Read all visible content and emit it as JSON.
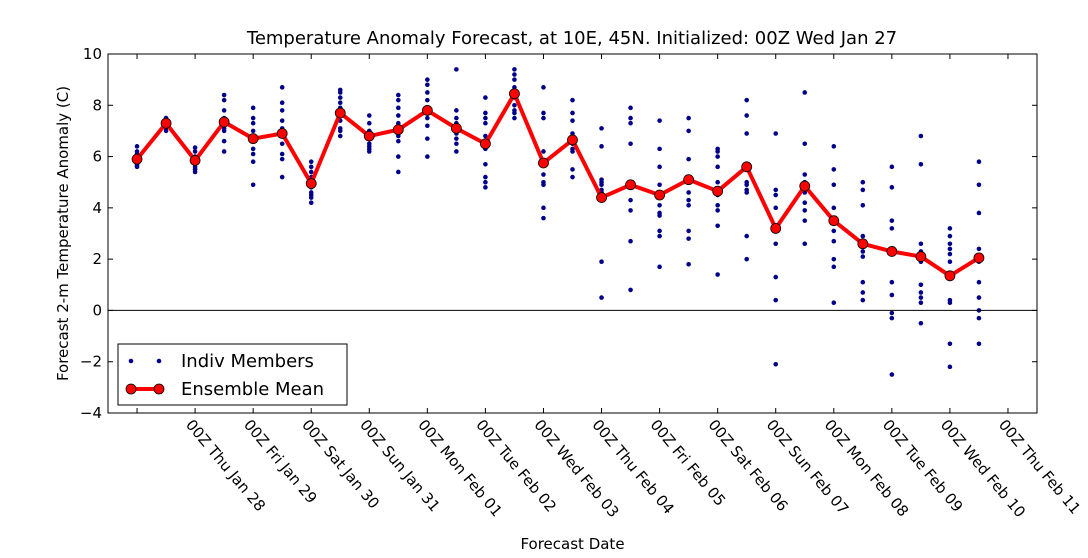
{
  "chart_data": {
    "type": "line",
    "title": "Temperature Anomaly Forecast, at 10E, 45N.  Initialized: 00Z Wed Jan 27",
    "xlabel": "Forecast Date",
    "ylabel": "Forecast 2-m Temperature Anomaly (C)",
    "ylim": [
      -4,
      10
    ],
    "yticks": [
      "−4",
      "−2",
      "0",
      "2",
      "4",
      "6",
      "8",
      "10"
    ],
    "xtick_labels": [
      "00Z Thu Jan 28",
      "00Z Fri Jan 29",
      "00Z Sat Jan 30",
      "00Z Sun Jan 31",
      "00Z Mon Feb 01",
      "00Z Tue Feb 02",
      "00Z Wed Feb 03",
      "00Z Thu Feb 04",
      "00Z Fri Feb 05",
      "00Z Sat Feb 06",
      "00Z Sun Feb 07",
      "00Z Mon Feb 08",
      "00Z Tue Feb 09",
      "00Z Wed Feb 10",
      "00Z Thu Feb 11"
    ],
    "x_forecast_days": [
      0,
      0.5,
      1,
      1.5,
      2,
      2.5,
      3,
      3.5,
      4,
      4.5,
      5,
      5.5,
      6,
      6.5,
      7,
      7.5,
      8,
      8.5,
      9,
      9.5,
      10,
      10.5,
      11,
      11.5,
      12,
      12.5,
      13,
      13.5,
      14,
      14.5
    ],
    "zero_line": 0,
    "legend": {
      "position": "lower-left",
      "entries": [
        "Indiv Members",
        "Ensemble Mean"
      ]
    },
    "series": [
      {
        "name": "Ensemble Mean",
        "color": "#ff0000",
        "marker_color": "#ff0000",
        "values": [
          5.9,
          7.3,
          5.85,
          7.35,
          6.7,
          6.9,
          4.95,
          7.7,
          6.8,
          7.05,
          7.8,
          7.1,
          6.5,
          8.45,
          5.75,
          6.65,
          4.4,
          4.9,
          4.5,
          5.1,
          4.65,
          5.6,
          3.2,
          4.85,
          3.5,
          2.6,
          2.3,
          2.1,
          1.35,
          2.05
        ]
      },
      {
        "name": "Indiv Members",
        "color": "#00008b",
        "members": [
          [
            5.6,
            5.7,
            5.8,
            5.9,
            6.0,
            6.1,
            6.2,
            6.4,
            5.65,
            6.0
          ],
          [
            7.0,
            7.1,
            7.2,
            7.3,
            7.4,
            7.5,
            7.2,
            7.35,
            7.25,
            7.45
          ],
          [
            5.4,
            5.5,
            5.6,
            5.7,
            5.8,
            6.0,
            6.2,
            6.35,
            5.5,
            5.9
          ],
          [
            6.2,
            6.6,
            7.0,
            7.2,
            7.3,
            7.5,
            7.8,
            8.2,
            8.4,
            7.1
          ],
          [
            4.9,
            5.8,
            6.1,
            6.3,
            6.6,
            6.8,
            7.0,
            7.3,
            7.5,
            7.9
          ],
          [
            5.2,
            5.9,
            6.1,
            6.5,
            6.9,
            7.1,
            7.4,
            7.8,
            8.1,
            8.7
          ],
          [
            4.2,
            4.4,
            4.6,
            4.8,
            5.0,
            5.2,
            5.4,
            5.6,
            5.8,
            4.5
          ],
          [
            6.8,
            7.1,
            7.4,
            7.7,
            7.9,
            8.1,
            8.3,
            8.5,
            8.6,
            7.0
          ],
          [
            6.2,
            6.3,
            6.5,
            6.7,
            6.9,
            7.0,
            7.3,
            7.6,
            6.4,
            6.8
          ],
          [
            5.4,
            6.0,
            6.6,
            6.8,
            7.1,
            7.3,
            7.6,
            7.9,
            8.2,
            8.4
          ],
          [
            6.0,
            6.7,
            7.2,
            7.5,
            7.7,
            7.9,
            8.2,
            8.5,
            8.8,
            9.0
          ],
          [
            6.2,
            6.5,
            6.7,
            6.9,
            7.0,
            7.2,
            7.3,
            7.5,
            7.8,
            9.4
          ],
          [
            4.8,
            5.0,
            5.2,
            5.7,
            6.3,
            6.8,
            7.3,
            7.5,
            7.7,
            8.3
          ],
          [
            7.5,
            7.7,
            7.8,
            8.0,
            8.3,
            8.5,
            8.7,
            9.0,
            9.2,
            9.4
          ],
          [
            3.6,
            4.0,
            4.9,
            5.3,
            5.8,
            6.2,
            7.5,
            7.7,
            8.7,
            5.0
          ],
          [
            5.2,
            5.5,
            6.2,
            6.5,
            6.7,
            6.9,
            7.4,
            7.7,
            8.2,
            6.3
          ],
          [
            0.5,
            1.9,
            4.4,
            4.6,
            4.7,
            4.9,
            5.0,
            5.1,
            6.4,
            7.1
          ],
          [
            0.8,
            2.7,
            3.9,
            4.3,
            4.8,
            5.0,
            6.5,
            7.3,
            7.5,
            7.9
          ],
          [
            1.7,
            2.9,
            3.1,
            3.7,
            3.8,
            4.1,
            4.9,
            5.6,
            6.3,
            7.4
          ],
          [
            1.8,
            2.8,
            3.1,
            4.1,
            4.3,
            4.6,
            5.1,
            5.9,
            7.0,
            7.5
          ],
          [
            1.4,
            3.3,
            3.9,
            4.1,
            4.5,
            5.0,
            5.6,
            6.0,
            6.2,
            6.3
          ],
          [
            2.0,
            2.9,
            4.6,
            4.7,
            4.9,
            5.0,
            5.5,
            6.9,
            7.6,
            8.2
          ],
          [
            -2.1,
            0.4,
            1.3,
            2.6,
            3.1,
            3.3,
            4.0,
            4.5,
            4.7,
            6.9
          ],
          [
            2.6,
            3.5,
            3.9,
            4.2,
            4.6,
            4.8,
            5.0,
            5.3,
            6.5,
            8.5
          ],
          [
            0.3,
            1.7,
            2.0,
            2.7,
            3.1,
            3.4,
            4.0,
            4.9,
            5.5,
            6.4
          ],
          [
            0.4,
            0.7,
            1.1,
            2.1,
            2.3,
            2.6,
            2.9,
            4.1,
            4.7,
            5.0
          ],
          [
            -2.5,
            -0.3,
            -0.1,
            0.6,
            1.1,
            2.4,
            3.2,
            3.5,
            4.8,
            5.6
          ],
          [
            -0.5,
            0.3,
            0.5,
            0.7,
            1.0,
            1.9,
            2.3,
            2.6,
            5.7,
            6.8
          ],
          [
            -2.2,
            -1.3,
            0.3,
            0.4,
            1.9,
            2.2,
            2.4,
            2.6,
            2.9,
            3.2
          ],
          [
            -1.3,
            -0.3,
            0.0,
            0.5,
            1.1,
            1.9,
            2.4,
            3.8,
            4.9,
            5.8
          ]
        ]
      }
    ],
    "grid": false
  }
}
